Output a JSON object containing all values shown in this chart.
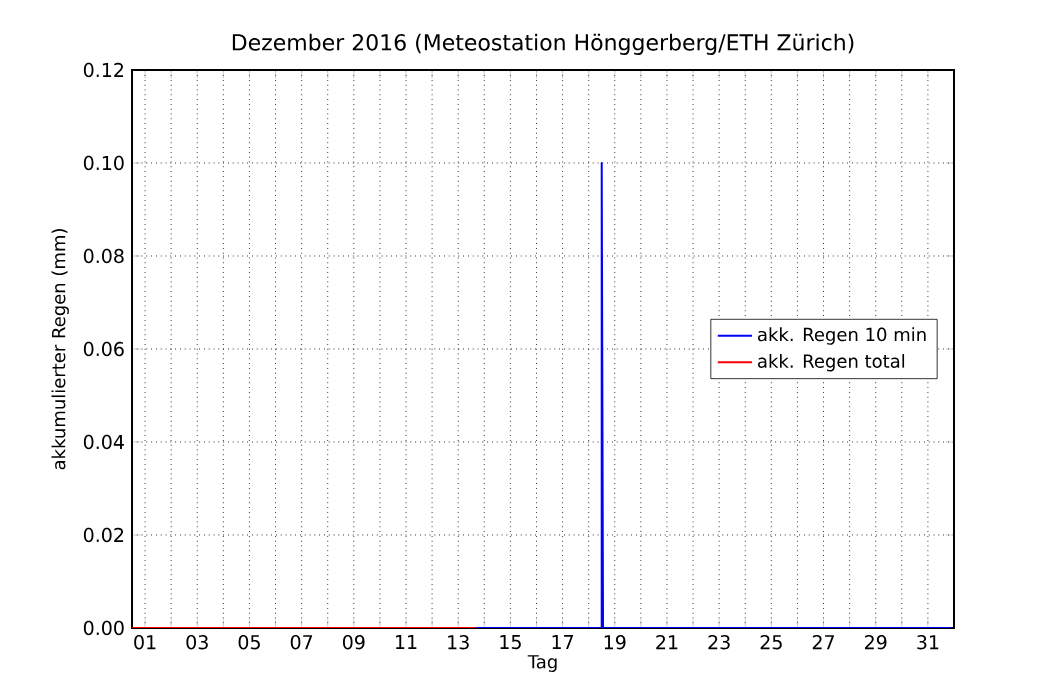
{
  "chart_data": {
    "type": "line",
    "title": "Dezember 2016  (Meteostation Hönggerberg/ETH Zürich)",
    "xlabel": "Tag",
    "ylabel": "akkumulierter Regen (mm)",
    "series": [
      {
        "name": "akk. Regen 10 min",
        "color": "#0000ff",
        "x": [
          0.5,
          18.5,
          18.5,
          18.55,
          31.9
        ],
        "values": [
          0,
          0,
          0.1,
          0,
          0
        ]
      },
      {
        "name": "akk. Regen total",
        "color": "#ff0000",
        "x": [
          0.5,
          13.7
        ],
        "values": [
          0,
          0
        ]
      }
    ],
    "xlim": [
      0.5,
      32
    ],
    "ylim": [
      0,
      0.12
    ],
    "xticks": [
      {
        "value": 1,
        "label": "01"
      },
      {
        "value": 2,
        "label": null
      },
      {
        "value": 3,
        "label": "03"
      },
      {
        "value": 4,
        "label": null
      },
      {
        "value": 5,
        "label": "05"
      },
      {
        "value": 6,
        "label": null
      },
      {
        "value": 7,
        "label": "07"
      },
      {
        "value": 8,
        "label": null
      },
      {
        "value": 9,
        "label": "09"
      },
      {
        "value": 10,
        "label": null
      },
      {
        "value": 11,
        "label": "11"
      },
      {
        "value": 12,
        "label": null
      },
      {
        "value": 13,
        "label": "13"
      },
      {
        "value": 14,
        "label": null
      },
      {
        "value": 15,
        "label": "15"
      },
      {
        "value": 16,
        "label": null
      },
      {
        "value": 17,
        "label": "17"
      },
      {
        "value": 18,
        "label": null
      },
      {
        "value": 19,
        "label": "19"
      },
      {
        "value": 20,
        "label": null
      },
      {
        "value": 21,
        "label": "21"
      },
      {
        "value": 22,
        "label": null
      },
      {
        "value": 23,
        "label": "23"
      },
      {
        "value": 24,
        "label": null
      },
      {
        "value": 25,
        "label": "25"
      },
      {
        "value": 26,
        "label": null
      },
      {
        "value": 27,
        "label": "27"
      },
      {
        "value": 28,
        "label": null
      },
      {
        "value": 29,
        "label": "29"
      },
      {
        "value": 30,
        "label": null
      },
      {
        "value": 31,
        "label": "31"
      }
    ],
    "yticks": [
      {
        "value": 0,
        "label": "0.00"
      },
      {
        "value": 0.02,
        "label": "0.02"
      },
      {
        "value": 0.04,
        "label": "0.04"
      },
      {
        "value": 0.06,
        "label": "0.06"
      },
      {
        "value": 0.08,
        "label": "0.08"
      },
      {
        "value": 0.1,
        "label": "0.10"
      },
      {
        "value": 0.12,
        "label": "0.12"
      }
    ],
    "grid": true,
    "legend": "right",
    "marker": "none",
    "line_style": "solid"
  }
}
